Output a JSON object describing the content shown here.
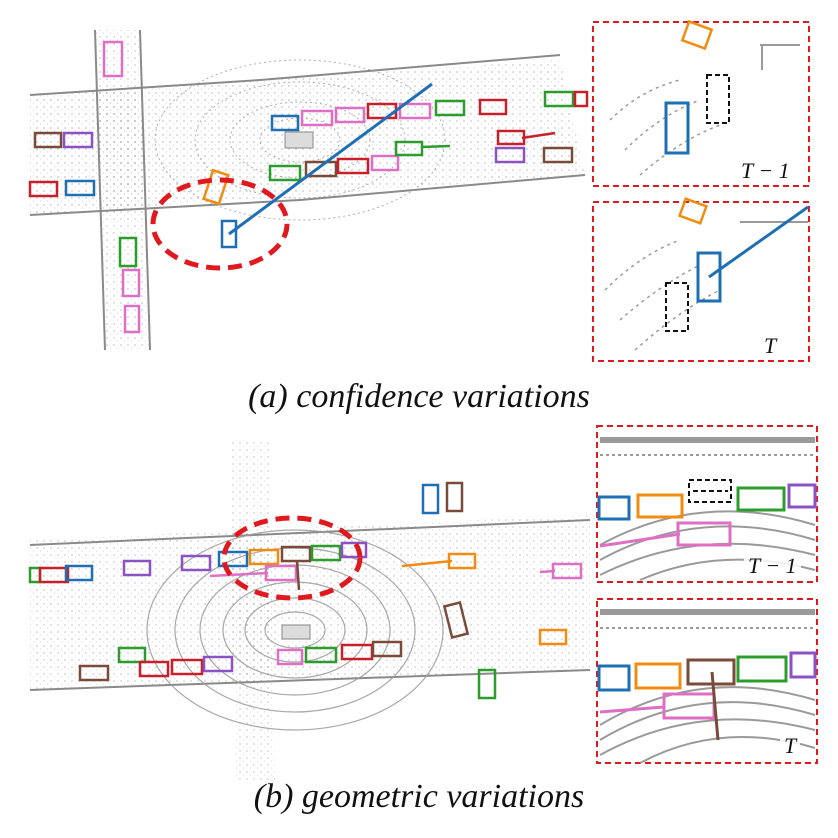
{
  "captions": {
    "a": "(a) confidence variations",
    "b": "(b) geometric variations"
  },
  "insets": {
    "a_top_label": "T − 1",
    "a_bottom_label": "T",
    "b_top_label": "T − 1",
    "b_bottom_label": "T"
  },
  "colors": {
    "highlight_dashed": "#e0191f",
    "blue": "#1f6fb4",
    "orange": "#f08c12",
    "green": "#2c9d2c",
    "red": "#c8202a",
    "purple": "#8c52c4",
    "brown": "#7a4a3a",
    "pink": "#de6fc4",
    "black_dashed": "#111111",
    "pointcloud": "#8a8a8a"
  }
}
